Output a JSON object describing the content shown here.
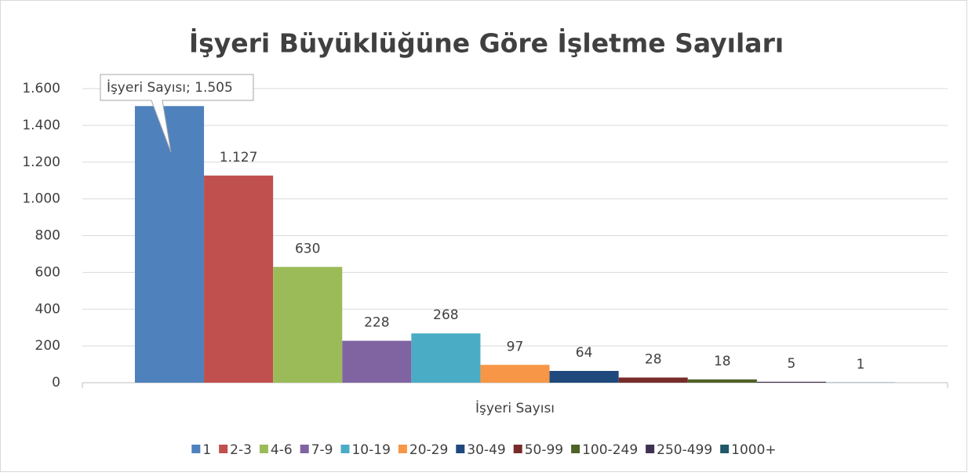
{
  "chart_data": {
    "type": "bar",
    "title": "İşyeri Büyüklüğüne Göre İşletme Sayıları",
    "categories": [
      "İşyeri Sayısı"
    ],
    "series": [
      {
        "name": "1",
        "color": "#4f81bd",
        "values": [
          1505
        ],
        "value_labels": [
          "İşyeri Sayısı; 1.505"
        ]
      },
      {
        "name": "2-3",
        "color": "#c0504d",
        "values": [
          1127
        ],
        "value_labels": [
          "1.127"
        ]
      },
      {
        "name": "4-6",
        "color": "#9bbb59",
        "values": [
          630
        ]
      },
      {
        "name": "7-9",
        "color": "#8064a2",
        "values": [
          228
        ]
      },
      {
        "name": "10-19",
        "color": "#4bacc6",
        "values": [
          268
        ]
      },
      {
        "name": "20-29",
        "color": "#f79646",
        "values": [
          97
        ]
      },
      {
        "name": "30-49",
        "color": "#1f497d",
        "values": [
          64
        ]
      },
      {
        "name": "50-99",
        "color": "#772c2a",
        "values": [
          28
        ]
      },
      {
        "name": "100-249",
        "color": "#4f6228",
        "values": [
          18
        ]
      },
      {
        "name": "250-499",
        "color": "#3f3151",
        "values": [
          5
        ]
      },
      {
        "name": "1000+",
        "color": "#205867",
        "values": [
          1
        ]
      }
    ],
    "ylim": [
      0,
      1600
    ],
    "yticks": [
      0,
      200,
      400,
      600,
      800,
      {
        "value": 1000,
        "label": "1.000"
      },
      {
        "value": 1200,
        "label": "1.200"
      },
      {
        "value": 1400,
        "label": "1.400"
      },
      {
        "value": 1600,
        "label": "1.600"
      }
    ],
    "grid": true,
    "legend": "bottom"
  }
}
